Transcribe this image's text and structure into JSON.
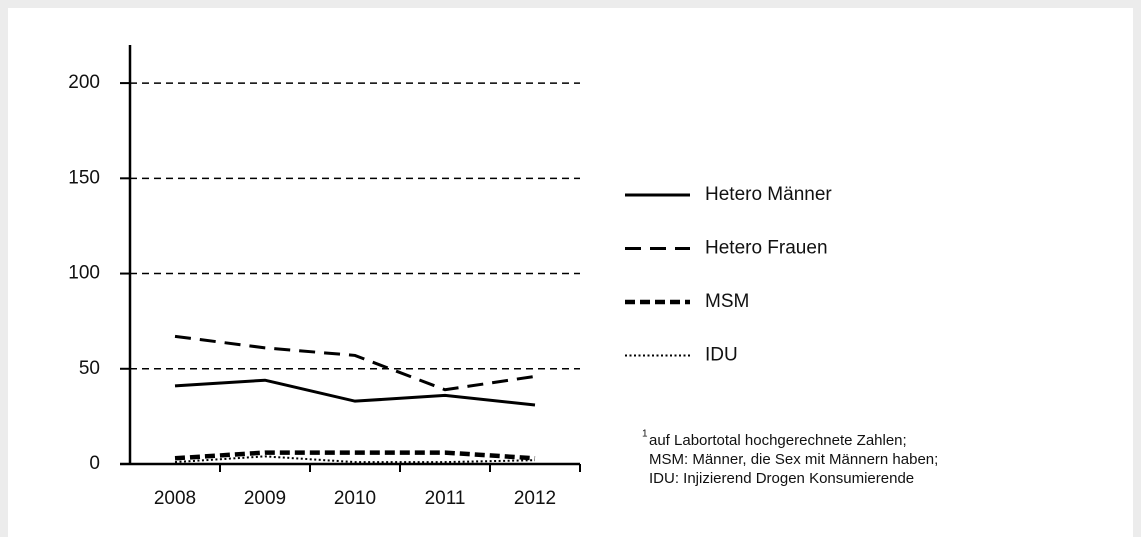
{
  "chart_data": {
    "type": "line",
    "categories": [
      "2008",
      "2009",
      "2010",
      "2011",
      "2012"
    ],
    "series": [
      {
        "name": "Hetero Männer",
        "color": "#000000",
        "line_style": "solid",
        "values": [
          41,
          44,
          33,
          36,
          31
        ]
      },
      {
        "name": "Hetero Frauen",
        "color": "#000000",
        "line_style": "dashed",
        "values": [
          67,
          61,
          57,
          39,
          46
        ]
      },
      {
        "name": "MSM",
        "color": "#000000",
        "line_style": "bold-dashed",
        "values": [
          3,
          6,
          6,
          6,
          3
        ]
      },
      {
        "name": "IDU",
        "color": "#000000",
        "line_style": "dotted",
        "values": [
          1,
          4,
          1,
          1,
          2
        ]
      }
    ],
    "ylim": [
      0,
      220
    ],
    "yticks": [
      0,
      50,
      100,
      150,
      200
    ],
    "grid": true,
    "legend": "right",
    "footnote_marker": "1",
    "footnote": [
      "auf Labortotal hochgerechnete Zahlen;",
      "MSM: Männer, die Sex mit Männern haben;",
      "IDU: Injizierend Drogen Konsumierende"
    ]
  }
}
